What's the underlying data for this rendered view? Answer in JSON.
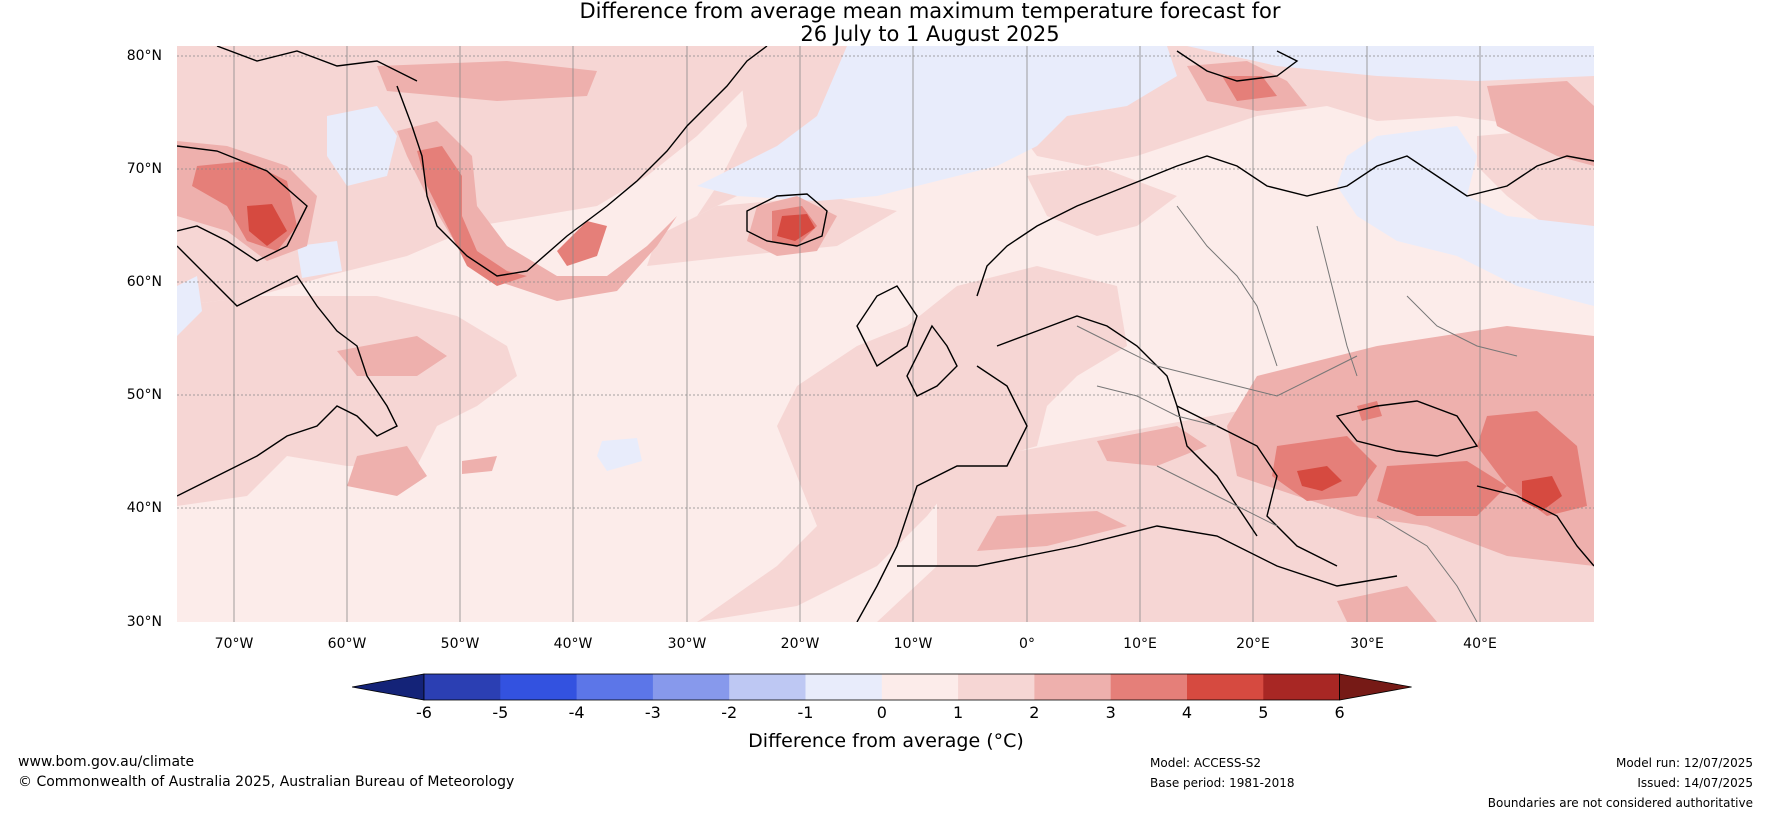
{
  "title": {
    "line1": "Difference from average mean maximum temperature forecast for",
    "line2": "26 July to 1 August 2025"
  },
  "map": {
    "lat_labels": [
      "80°N",
      "70°N",
      "60°N",
      "50°N",
      "40°N",
      "30°N"
    ],
    "lon_labels": [
      "70°W",
      "60°W",
      "50°W",
      "40°W",
      "30°W",
      "20°W",
      "10°W",
      "0°",
      "10°E",
      "20°E",
      "30°E",
      "40°E"
    ],
    "extent": {
      "lon": [
        -75,
        50
      ],
      "lat": [
        30,
        80
      ]
    }
  },
  "colorbar": {
    "ticks": [
      "-6",
      "-5",
      "-4",
      "-3",
      "-2",
      "-1",
      "0",
      "1",
      "2",
      "3",
      "4",
      "5",
      "6"
    ],
    "colors": [
      "#142378",
      "#2b3fb3",
      "#3352e0",
      "#5c76e8",
      "#8799ec",
      "#bec8f3",
      "#e8ecfb",
      "#fcecea",
      "#f6d6d4",
      "#eeb0ad",
      "#e57f79",
      "#d64a40",
      "#a82724",
      "#761a16"
    ],
    "title": "Difference from average (°C)"
  },
  "footer": {
    "website": "www.bom.gov.au/climate",
    "copyright": "© Commonwealth of Australia 2025, Australian Bureau of Meteorology",
    "model": "Model: ACCESS-S2",
    "base_period": "Base period: 1981-2018",
    "model_run": "Model run: 12/07/2025",
    "issued": "Issued: 14/07/2025",
    "disclaimer": "Boundaries are not considered authoritative"
  }
}
